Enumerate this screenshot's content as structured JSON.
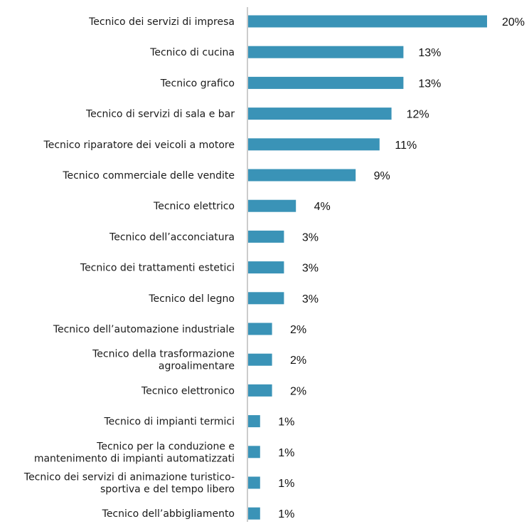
{
  "chart_data": {
    "type": "bar",
    "orientation": "horizontal",
    "title": "",
    "xlabel": "",
    "ylabel": "",
    "value_suffix": "%",
    "xlim": [
      0,
      20
    ],
    "grid": false,
    "legend": "none",
    "bar_color": "#3a93b7",
    "axis_color": "#9a9a9a",
    "categories": [
      "Tecnico dei servizi di impresa",
      "Tecnico di cucina",
      "Tecnico grafico",
      "Tecnico di servizi di sala e bar",
      "Tecnico riparatore dei veicoli a motore",
      "Tecnico commerciale delle vendite",
      "Tecnico elettrico",
      "Tecnico dell’acconciatura",
      "Tecnico dei trattamenti estetici",
      "Tecnico del legno",
      "Tecnico dell’automazione industriale",
      "Tecnico della trasformazione agroalimentare",
      "Tecnico elettronico",
      "Tecnico di impianti termici",
      "Tecnico per la conduzione e mantenimento di impianti automatizzati",
      "Tecnico dei servizi di animazione turistico-sportiva e del tempo libero",
      "Tecnico dell’abbigliamento"
    ],
    "category_lines": [
      [
        "Tecnico dei servizi di impresa"
      ],
      [
        "Tecnico di cucina"
      ],
      [
        "Tecnico grafico"
      ],
      [
        "Tecnico di servizi di sala e bar"
      ],
      [
        "Tecnico riparatore dei veicoli a motore"
      ],
      [
        "Tecnico commerciale delle vendite"
      ],
      [
        "Tecnico elettrico"
      ],
      [
        "Tecnico dell’acconciatura"
      ],
      [
        "Tecnico dei trattamenti estetici"
      ],
      [
        "Tecnico del legno"
      ],
      [
        "Tecnico dell’automazione industriale"
      ],
      [
        "Tecnico della trasformazione",
        "agroalimentare"
      ],
      [
        "Tecnico elettronico"
      ],
      [
        "Tecnico di impianti termici"
      ],
      [
        "Tecnico per la conduzione e",
        "mantenimento di impianti automatizzati"
      ],
      [
        "Tecnico dei servizi di animazione turistico-",
        "sportiva e del tempo libero"
      ],
      [
        "Tecnico dell’abbigliamento"
      ]
    ],
    "values": [
      20,
      13,
      13,
      12,
      11,
      9,
      4,
      3,
      3,
      3,
      2,
      2,
      2,
      1,
      1,
      1,
      1
    ],
    "value_labels": [
      "20%",
      "13%",
      "13%",
      "12%",
      "11%",
      "9%",
      "4%",
      "3%",
      "3%",
      "3%",
      "2%",
      "2%",
      "2%",
      "1%",
      "1%",
      "1%",
      "1%"
    ]
  }
}
